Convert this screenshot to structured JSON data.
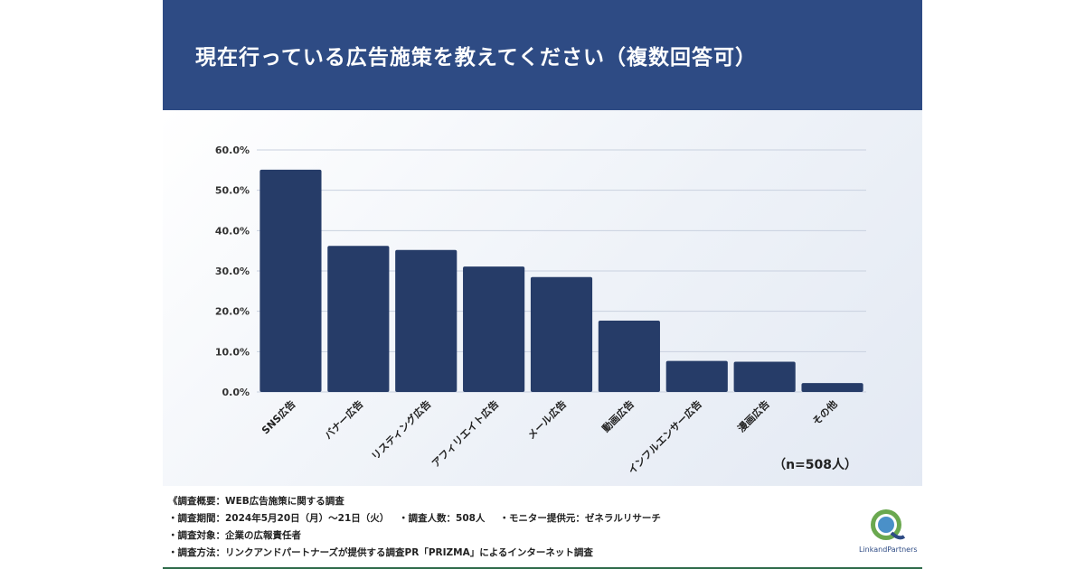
{
  "header": {
    "title": "現在行っている広告施策を教えてください（複数回答可）"
  },
  "chart_data": {
    "type": "bar",
    "categories": [
      "SNS広告",
      "バナー広告",
      "リスティング広告",
      "アフィリエイト広告",
      "メール広告",
      "動画広告",
      "インフルエンサー広告",
      "漫画広告",
      "その他"
    ],
    "values": [
      55.1,
      36.2,
      35.2,
      31.1,
      28.5,
      17.7,
      7.7,
      7.5,
      2.2
    ],
    "ylim": [
      0,
      60
    ],
    "yticks": [
      "0.0%",
      "10.0%",
      "20.0%",
      "30.0%",
      "40.0%",
      "50.0%",
      "60.0%"
    ],
    "grid": true,
    "bar_color": "#263c68",
    "sample_note": "（n=508人）"
  },
  "footer": {
    "notes": [
      [
        "《調査概要：WEB広告施策に関する調査"
      ],
      [
        "・調査期間：2024年5月20日（月）〜21日（火）",
        "・調査人数：508人",
        "・モニター提供元：ゼネラルリサーチ"
      ],
      [
        "・調査対象：企業の広報責任者"
      ],
      [
        "・調査方法：リンクアンドパートナーズが提供する調査PR「PRIZMA」によるインターネット調査"
      ]
    ],
    "logo_text": "LinkandPartners",
    "logo_icon": "link-and-partners-logo-icon"
  },
  "colors": {
    "header_bg": "#2e4b84",
    "bar": "#263c68",
    "grid": "#c9d1df"
  }
}
